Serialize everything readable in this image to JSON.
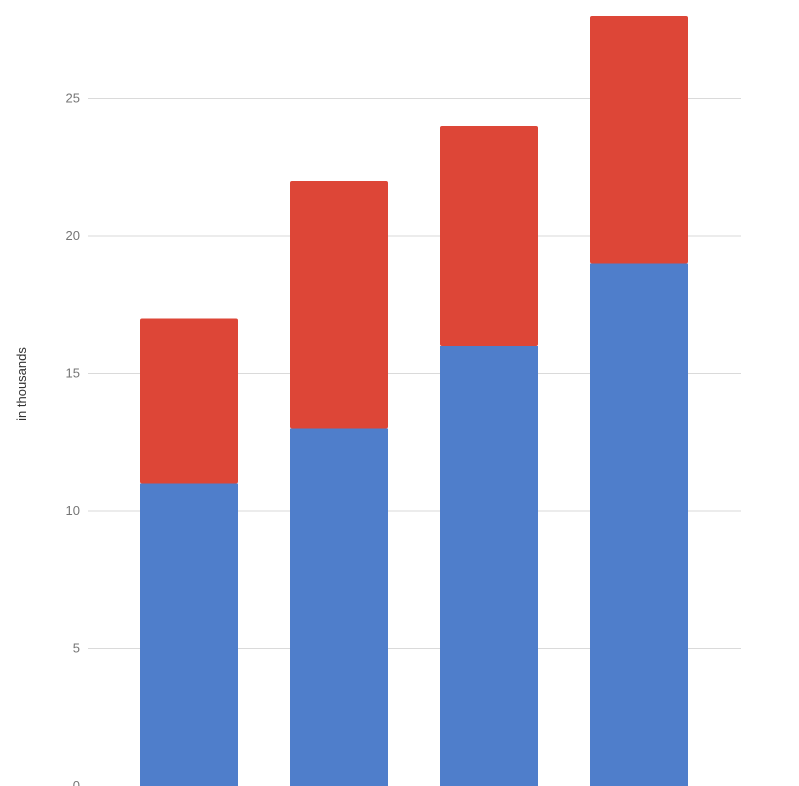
{
  "chart_data": {
    "type": "bar",
    "stacked": true,
    "categories": [
      "",
      "",
      "",
      ""
    ],
    "series": [
      {
        "values": [
          11,
          13,
          16,
          19
        ],
        "color": "#4f7ecb"
      },
      {
        "values": [
          6,
          9,
          8,
          9
        ],
        "color": "#dd4637"
      }
    ],
    "ylabel": "in thousands",
    "ylim": [
      0,
      28
    ],
    "yticks": [
      "0",
      "5",
      "10",
      "15",
      "20",
      "25"
    ],
    "grid": true
  }
}
